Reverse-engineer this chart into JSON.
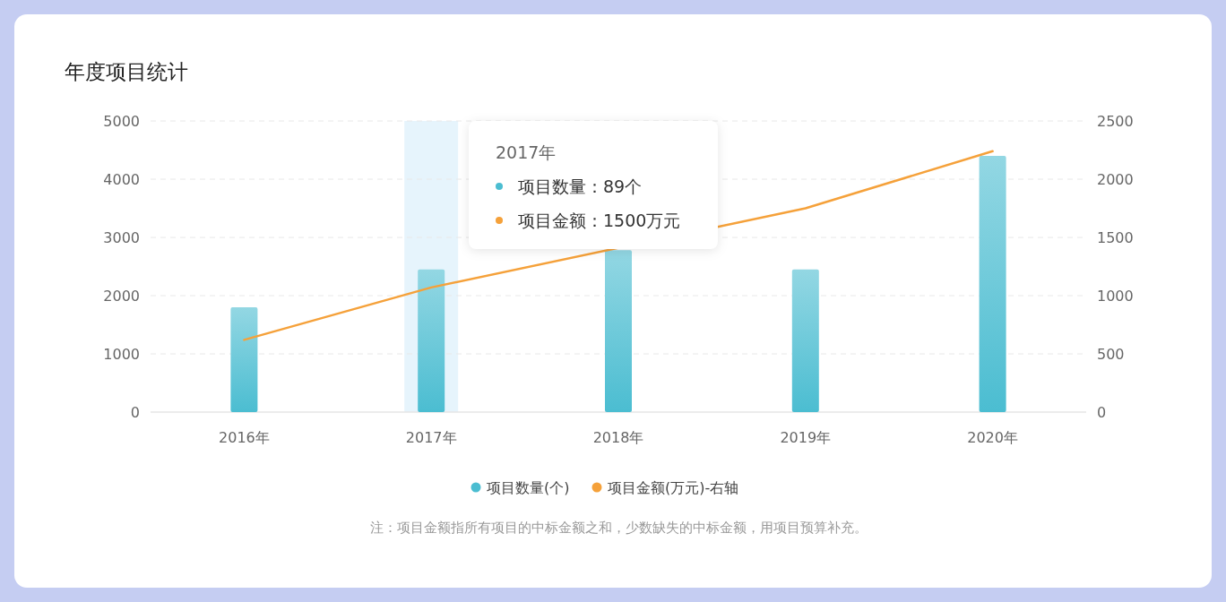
{
  "chart_data": {
    "type": "bar",
    "title": "年度项目统计",
    "categories": [
      "2016年",
      "2017年",
      "2018年",
      "2019年",
      "2020年"
    ],
    "series": [
      {
        "name": "项目数量(个)",
        "color": "#4bbdd1",
        "values": [
          1800,
          2450,
          2780,
          2450,
          4400
        ]
      },
      {
        "name": "项目金额(万元)-右轴",
        "type": "line",
        "axis": "y2",
        "color": "#f5a13a",
        "values": [
          620,
          1070,
          null,
          1750,
          2240
        ]
      }
    ],
    "ylim": [
      0,
      5000
    ],
    "yticks": [
      0,
      1000,
      2000,
      3000,
      4000,
      5000
    ],
    "y2lim": [
      0,
      2500
    ],
    "y2ticks": [
      0,
      500,
      1000,
      1500,
      2000,
      2500
    ],
    "grid": "y",
    "legend": "bottom",
    "marker": "none",
    "line_style": "solid",
    "bands": [
      {
        "axis": "x",
        "from": "2017年",
        "to": "2017年",
        "color": "#e6f4fc"
      }
    ],
    "annotations": [
      "2017年",
      "项目数量：89个",
      "项目金额：1500万元",
      "注：项目金额指所有项目的中标金额之和，少数缺失的中标金额，用项目预算补充。"
    ]
  }
}
